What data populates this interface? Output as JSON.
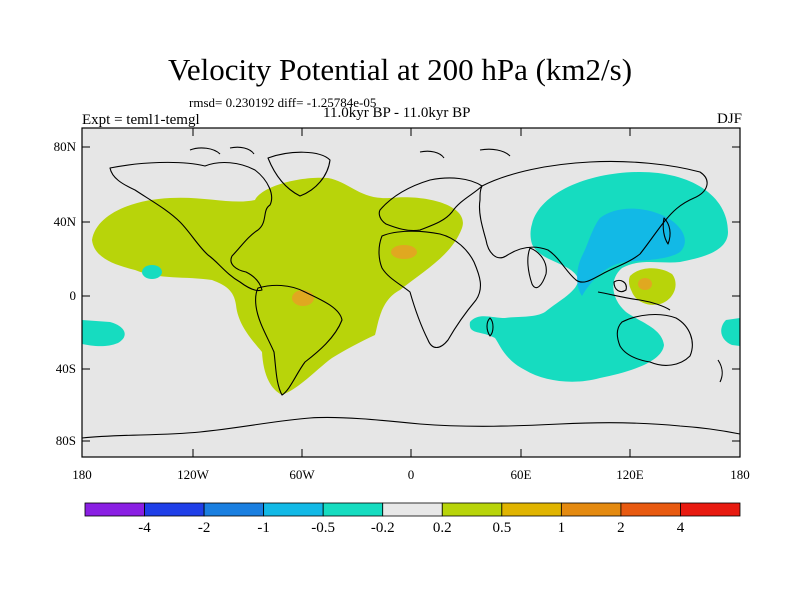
{
  "title": "Velocity Potential at 200 hPa (km2/s)",
  "stats": "rmsd= 0.230192 diff= -1.25784e-05",
  "experiment": "Expt = teml1-temgl",
  "period": "11.0kyr BP - 11.0kyr BP",
  "season": "DJF",
  "axes": {
    "y_labels": [
      "80N",
      "40N",
      "0",
      "40S",
      "80S"
    ],
    "x_labels": [
      "180",
      "120W",
      "60W",
      "0",
      "60E",
      "120E",
      "180"
    ]
  },
  "colorbar": {
    "labels": [
      "-4",
      "-2",
      "-1",
      "-0.5",
      "-0.2",
      "0.2",
      "0.5",
      "1",
      "2",
      "4"
    ],
    "colors": [
      "#8a1fe3",
      "#1f3fe8",
      "#1a7fe0",
      "#12b9e6",
      "#16dcc0",
      "#e8e8e8",
      "#b8d40a",
      "#e0b400",
      "#e48a10",
      "#e85a10",
      "#e81a10"
    ]
  },
  "colors": {
    "ocean_bg": "#e6e6e6",
    "positive_weak": "#b8d40a",
    "positive_mid": "#e0a820",
    "negative_weak": "#16dcc0",
    "negative_mid": "#12b9e6"
  }
}
